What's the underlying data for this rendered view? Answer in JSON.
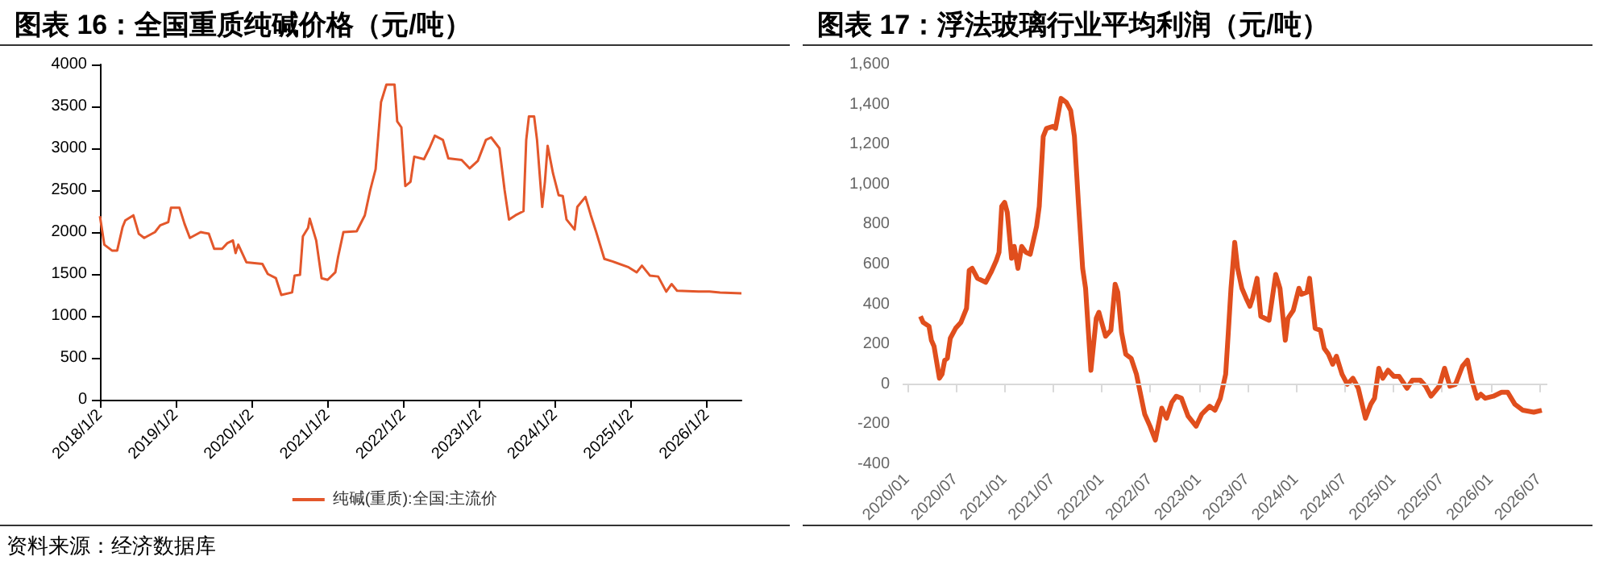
{
  "chart_data": [
    {
      "type": "line",
      "title": "图表 16：全国重质纯碱价格（元/吨）",
      "annotations": [
        "资料来源：经济数据库"
      ],
      "legend": "bottom",
      "grid": false,
      "marker": "none",
      "xlim": [
        "2018-01-02",
        "2026-06-17"
      ],
      "xticks": [
        {
          "value": "2018-01-02",
          "label": "2018/1/2"
        },
        {
          "value": "2019-01-02",
          "label": "2019/1/2"
        },
        {
          "value": "2020-01-02",
          "label": "2020/1/2"
        },
        {
          "value": "2021-01-02",
          "label": "2021/1/2"
        },
        {
          "value": "2022-01-02",
          "label": "2022/1/2"
        },
        {
          "value": "2023-01-02",
          "label": "2023/1/2"
        },
        {
          "value": "2024-01-02",
          "label": "2024/1/2"
        },
        {
          "value": "2025-01-02",
          "label": "2025/1/2"
        },
        {
          "value": "2026-01-02",
          "label": "2026/1/2"
        }
      ],
      "ylim": [
        0,
        4000
      ],
      "yticks": [
        0,
        500,
        1000,
        1500,
        2000,
        2500,
        3000,
        3500,
        4000
      ],
      "x": [
        "2018-01-02",
        "2018-01-23",
        "2018-03-01",
        "2018-03-26",
        "2018-04-21",
        "2018-05-04",
        "2018-06-12",
        "2018-07-08",
        "2018-08-03",
        "2018-09-24",
        "2018-10-19",
        "2018-11-27",
        "2018-12-10",
        "2019-01-20",
        "2019-02-13",
        "2019-03-11",
        "2019-05-02",
        "2019-06-10",
        "2019-07-06",
        "2019-08-13",
        "2019-09-08",
        "2019-10-04",
        "2019-10-17",
        "2019-10-30",
        "2019-12-08",
        "2020-02-23",
        "2020-03-20",
        "2020-04-28",
        "2020-05-24",
        "2020-07-15",
        "2020-07-27",
        "2020-08-22",
        "2020-09-05",
        "2020-09-30",
        "2020-10-08",
        "2020-11-08",
        "2020-12-04",
        "2021-01-02",
        "2021-02-08",
        "2021-02-21",
        "2021-03-19",
        "2021-05-22",
        "2021-06-30",
        "2021-07-26",
        "2021-08-21",
        "2021-09-16",
        "2021-10-12",
        "2021-11-20",
        "2021-12-03",
        "2021-12-23",
        "2022-01-11",
        "2022-02-05",
        "2022-02-23",
        "2022-04-11",
        "2022-05-07",
        "2022-06-02",
        "2022-07-11",
        "2022-08-06",
        "2022-10-09",
        "2022-11-17",
        "2022-12-26",
        "2023-02-03",
        "2023-02-28",
        "2023-04-09",
        "2023-05-04",
        "2023-05-25",
        "2023-06-25",
        "2023-08-03",
        "2023-08-16",
        "2023-08-29",
        "2023-09-23",
        "2023-10-07",
        "2023-11-01",
        "2023-11-14",
        "2023-11-27",
        "2023-12-23",
        "2024-01-19",
        "2024-02-08",
        "2024-02-26",
        "2024-04-05",
        "2024-04-18",
        "2024-05-27",
        "2024-06-22",
        "2024-07-18",
        "2024-08-26",
        "2024-10-04",
        "2024-12-21",
        "2025-01-29",
        "2025-02-23",
        "2025-04-03",
        "2025-05-12",
        "2025-06-20",
        "2025-07-16",
        "2025-08-11",
        "2025-11-22",
        "2026-01-14",
        "2026-03-06",
        "2026-06-17"
      ],
      "series": [
        {
          "name": "纯碱(重质):全国:主流价",
          "color": "#e3572b",
          "values": [
            2190,
            1850,
            1780,
            1780,
            2060,
            2140,
            2200,
            1980,
            1930,
            2000,
            2080,
            2120,
            2290,
            2290,
            2100,
            1930,
            2000,
            1980,
            1800,
            1800,
            1870,
            1900,
            1750,
            1850,
            1640,
            1620,
            1500,
            1450,
            1250,
            1280,
            1480,
            1490,
            1950,
            2050,
            2160,
            1900,
            1450,
            1430,
            1520,
            1700,
            2000,
            2010,
            2200,
            2500,
            2750,
            3550,
            3760,
            3760,
            3320,
            3250,
            2550,
            2600,
            2900,
            2870,
            3000,
            3150,
            3100,
            2880,
            2860,
            2760,
            2850,
            3100,
            3130,
            3000,
            2500,
            2150,
            2200,
            2250,
            3100,
            3380,
            3380,
            3100,
            2300,
            2600,
            3030,
            2700,
            2440,
            2430,
            2150,
            2030,
            2300,
            2420,
            2200,
            2000,
            1680,
            1650,
            1580,
            1520,
            1600,
            1480,
            1470,
            1290,
            1380,
            1300,
            1290,
            1290,
            1280,
            1270
          ]
        }
      ]
    },
    {
      "type": "line",
      "title": "图表 17：浮法玻璃行业平均利润（元/吨）",
      "legend": false,
      "grid": false,
      "marker": "none",
      "ref_lines": [
        {
          "axis": "y",
          "value": 0,
          "color": "#d9d9d9",
          "line_style": "solid"
        }
      ],
      "xlim": [
        "2019-12-15",
        "2026-08-01"
      ],
      "xticks": [
        {
          "value": "2020-01",
          "label": "2020/01"
        },
        {
          "value": "2020-07",
          "label": "2020/07"
        },
        {
          "value": "2021-01",
          "label": "2021/01"
        },
        {
          "value": "2021-07",
          "label": "2021/07"
        },
        {
          "value": "2022-01",
          "label": "2022/01"
        },
        {
          "value": "2022-07",
          "label": "2022/07"
        },
        {
          "value": "2023-01",
          "label": "2023/01"
        },
        {
          "value": "2023-07",
          "label": "2023/07"
        },
        {
          "value": "2024-01",
          "label": "2024/01"
        },
        {
          "value": "2024-07",
          "label": "2024/07"
        },
        {
          "value": "2025-01",
          "label": "2025/01"
        },
        {
          "value": "2025-07",
          "label": "2025/07"
        },
        {
          "value": "2026-01",
          "label": "2026/01"
        },
        {
          "value": "2026-07",
          "label": "2026/07"
        }
      ],
      "ylim": [
        -400,
        1600
      ],
      "yticks": [
        {
          "value": -400,
          "label": "-400"
        },
        {
          "value": -200,
          "label": "-200"
        },
        0,
        200,
        400,
        600,
        800,
        {
          "value": 1000,
          "label": "1,000"
        },
        {
          "value": 1200,
          "label": "1,200"
        },
        {
          "value": 1400,
          "label": "1,400"
        },
        {
          "value": 1600,
          "label": "1,600"
        }
      ],
      "x": [
        "2020-02-20",
        "2020-03-01",
        "2020-03-23",
        "2020-04-01",
        "2020-04-11",
        "2020-05-01",
        "2020-05-11",
        "2020-05-21",
        "2020-05-31",
        "2020-06-11",
        "2020-07-01",
        "2020-07-21",
        "2020-08-11",
        "2020-08-21",
        "2020-09-01",
        "2020-09-21",
        "2020-10-22",
        "2020-11-11",
        "2020-12-01",
        "2020-12-11",
        "2020-12-21",
        "2021-01-01",
        "2021-01-11",
        "2021-01-27",
        "2021-02-06",
        "2021-02-20",
        "2021-03-06",
        "2021-03-22",
        "2021-04-07",
        "2021-05-01",
        "2021-05-11",
        "2021-05-26",
        "2021-06-07",
        "2021-07-01",
        "2021-07-11",
        "2021-08-01",
        "2021-08-21",
        "2021-09-06",
        "2021-09-20",
        "2021-10-05",
        "2021-10-21",
        "2021-11-01",
        "2021-11-21",
        "2021-12-11",
        "2021-12-21",
        "2022-01-15",
        "2022-02-04",
        "2022-02-20",
        "2022-03-02",
        "2022-03-16",
        "2022-04-01",
        "2022-04-21",
        "2022-05-11",
        "2022-06-11",
        "2022-07-01",
        "2022-07-21",
        "2022-08-14",
        "2022-09-01",
        "2022-09-21",
        "2022-10-07",
        "2022-10-27",
        "2022-11-21",
        "2022-12-21",
        "2023-01-11",
        "2023-02-10",
        "2023-03-02",
        "2023-03-22",
        "2023-04-11",
        "2023-04-21",
        "2023-05-01",
        "2023-05-15",
        "2023-05-26",
        "2023-06-11",
        "2023-06-27",
        "2023-07-11",
        "2023-07-21",
        "2023-08-07",
        "2023-08-21",
        "2023-09-21",
        "2023-10-16",
        "2023-11-01",
        "2023-11-21",
        "2023-12-01",
        "2023-12-21",
        "2024-01-11",
        "2024-01-21",
        "2024-02-10",
        "2024-02-20",
        "2024-03-12",
        "2024-04-01",
        "2024-04-15",
        "2024-05-01",
        "2024-05-17",
        "2024-05-31",
        "2024-06-21",
        "2024-07-11",
        "2024-08-01",
        "2024-08-21",
        "2024-09-17",
        "2024-10-07",
        "2024-10-21",
        "2024-11-06",
        "2024-11-21",
        "2024-12-11",
        "2025-01-01",
        "2025-01-21",
        "2025-02-20",
        "2025-03-12",
        "2025-04-11",
        "2025-05-01",
        "2025-05-21",
        "2025-06-21",
        "2025-07-11",
        "2025-07-31",
        "2025-08-21",
        "2025-09-16",
        "2025-10-05",
        "2025-10-21",
        "2025-11-10",
        "2025-11-24",
        "2025-12-11",
        "2026-01-10",
        "2026-02-10",
        "2026-03-05",
        "2026-04-01",
        "2026-05-01",
        "2026-06-11",
        "2026-07-11"
      ],
      "series": [
        {
          "color": "#e04e1d",
          "values": [
            340,
            310,
            290,
            220,
            190,
            30,
            50,
            120,
            130,
            230,
            280,
            310,
            380,
            570,
            580,
            530,
            510,
            560,
            620,
            660,
            890,
            910,
            860,
            630,
            690,
            580,
            690,
            660,
            650,
            790,
            890,
            1240,
            1280,
            1290,
            1280,
            1430,
            1410,
            1370,
            1240,
            910,
            580,
            480,
            70,
            330,
            360,
            240,
            270,
            500,
            460,
            260,
            150,
            130,
            50,
            -150,
            -210,
            -280,
            -120,
            -170,
            -90,
            -60,
            -70,
            -160,
            -210,
            -150,
            -110,
            -130,
            -70,
            50,
            260,
            480,
            710,
            580,
            480,
            430,
            390,
            430,
            530,
            340,
            320,
            550,
            480,
            220,
            330,
            370,
            480,
            450,
            460,
            530,
            280,
            270,
            180,
            150,
            100,
            140,
            50,
            0,
            30,
            -20,
            -170,
            -100,
            -70,
            80,
            30,
            70,
            40,
            40,
            -20,
            20,
            20,
            -10,
            -60,
            -10,
            80,
            -10,
            0,
            90,
            120,
            20,
            -70,
            -50,
            -70,
            -60,
            -40,
            -40,
            -100,
            -130,
            -140,
            -130
          ]
        }
      ]
    }
  ]
}
